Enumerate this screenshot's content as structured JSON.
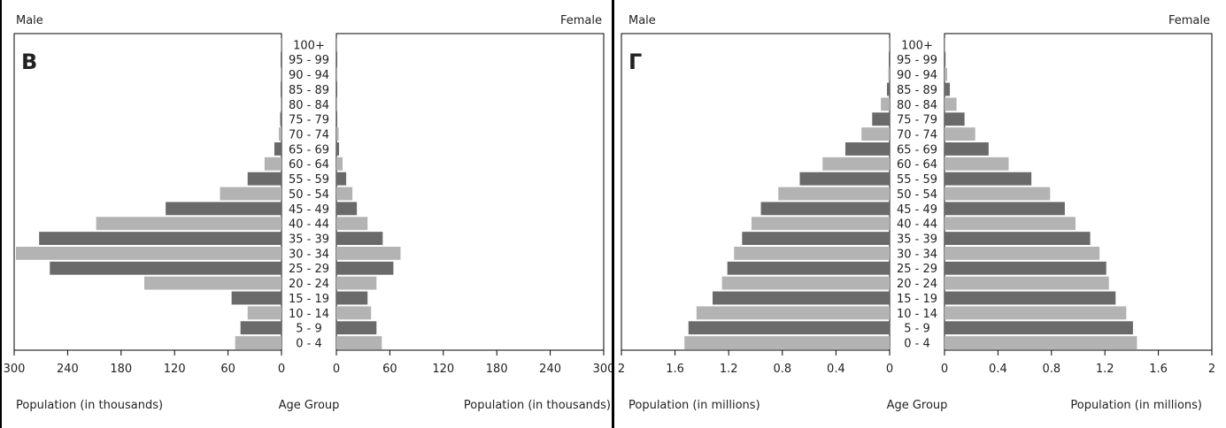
{
  "chart_data": [
    {
      "type": "bar",
      "panel_letter": "B",
      "corner_labels": {
        "left": "Male",
        "right": "Female"
      },
      "x_axis": {
        "unit_label_left": "Population (in thousands)",
        "unit_label_right": "Population (in thousands)",
        "center_label": "Age Group",
        "max": 300,
        "ticks": [
          300,
          240,
          180,
          120,
          60,
          0
        ]
      },
      "categories": [
        "100+",
        "95 - 99",
        "90 - 94",
        "85 - 89",
        "80 - 84",
        "75 - 79",
        "70 - 74",
        "65 - 69",
        "60 - 64",
        "55 - 59",
        "50 - 54",
        "45 - 49",
        "40 - 44",
        "35 - 39",
        "30 - 34",
        "25 - 29",
        "20 - 24",
        "15 - 19",
        "10 - 14",
        "5 - 9",
        "0 - 4"
      ],
      "series": [
        {
          "name": "Male",
          "values": [
            0.5,
            0.5,
            0.5,
            0.5,
            0.5,
            1.5,
            3,
            8,
            19,
            38,
            69,
            130,
            208,
            272,
            298,
            260,
            154,
            56,
            38,
            46,
            52
          ]
        },
        {
          "name": "Female",
          "values": [
            0.5,
            0.5,
            0.5,
            0.5,
            0.5,
            0.5,
            2.5,
            3,
            7,
            11,
            18,
            23,
            35,
            52,
            72,
            64,
            45,
            35,
            39,
            45,
            51
          ]
        }
      ]
    },
    {
      "type": "bar",
      "panel_letter": "Г",
      "corner_labels": {
        "left": "Male",
        "right": "Female"
      },
      "x_axis": {
        "unit_label_left": "Population (in millions)",
        "unit_label_right": "Population (in millions)",
        "center_label": "Age Group",
        "max": 2,
        "ticks": [
          "2",
          "1.6",
          "1.2",
          "0.8",
          "0.4",
          "0"
        ],
        "ticks_right": [
          "0",
          "0.4",
          "0.8",
          "1.2",
          "1.6",
          "2"
        ]
      },
      "categories": [
        "100+",
        "95 - 99",
        "90 - 94",
        "85 - 89",
        "80 - 84",
        "75 - 79",
        "70 - 74",
        "65 - 69",
        "60 - 64",
        "55 - 59",
        "50 - 54",
        "45 - 49",
        "40 - 44",
        "35 - 39",
        "30 - 34",
        "25 - 29",
        "20 - 24",
        "15 - 19",
        "10 - 14",
        "5 - 9",
        "0 - 4"
      ],
      "series": [
        {
          "name": "Male",
          "values": [
            0.003,
            0.005,
            0.01,
            0.02,
            0.065,
            0.13,
            0.21,
            0.33,
            0.5,
            0.67,
            0.83,
            0.96,
            1.03,
            1.1,
            1.16,
            1.21,
            1.25,
            1.32,
            1.44,
            1.5,
            1.53
          ]
        },
        {
          "name": "Female",
          "values": [
            0.004,
            0.008,
            0.02,
            0.04,
            0.09,
            0.15,
            0.23,
            0.33,
            0.48,
            0.65,
            0.79,
            0.9,
            0.98,
            1.09,
            1.16,
            1.21,
            1.23,
            1.28,
            1.36,
            1.41,
            1.44
          ]
        }
      ]
    }
  ],
  "colors": {
    "dark": "#6a6a6a",
    "light": "#b3b3b3",
    "axis": "#000000"
  }
}
